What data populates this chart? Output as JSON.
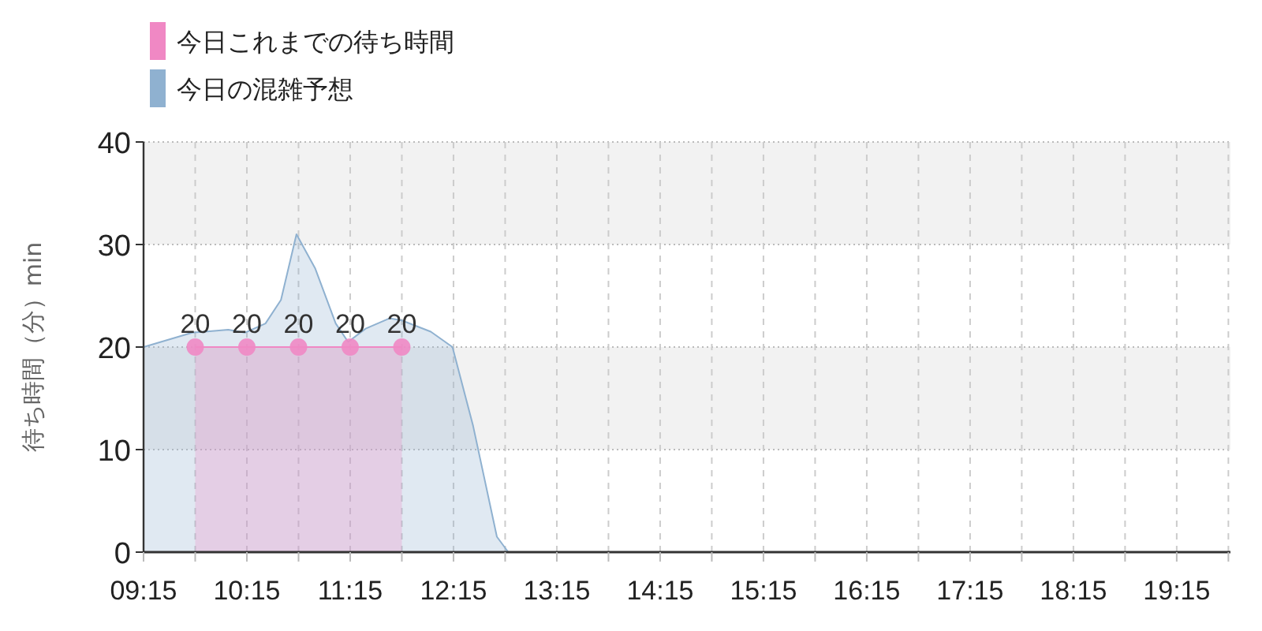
{
  "chart_data": {
    "type": "area",
    "ylabel": "待ち時間（分）min",
    "x": [
      9.75,
      10.25,
      10.75,
      11.25,
      11.75
    ],
    "xlim": [
      9.25,
      19.77
    ],
    "xticks": [
      {
        "value": 9.25,
        "label": "09:15"
      },
      {
        "value": 9.75,
        "label": null
      },
      {
        "value": 10.25,
        "label": "10:15"
      },
      {
        "value": 10.75,
        "label": null
      },
      {
        "value": 11.25,
        "label": "11:15"
      },
      {
        "value": 11.75,
        "label": null
      },
      {
        "value": 12.25,
        "label": "12:15"
      },
      {
        "value": 12.75,
        "label": null
      },
      {
        "value": 13.25,
        "label": "13:15"
      },
      {
        "value": 13.75,
        "label": null
      },
      {
        "value": 14.25,
        "label": "14:15"
      },
      {
        "value": 14.75,
        "label": null
      },
      {
        "value": 15.25,
        "label": "15:15"
      },
      {
        "value": 15.75,
        "label": null
      },
      {
        "value": 16.25,
        "label": "16:15"
      },
      {
        "value": 16.75,
        "label": null
      },
      {
        "value": 17.25,
        "label": "17:15"
      },
      {
        "value": 17.75,
        "label": null
      },
      {
        "value": 18.25,
        "label": "18:15"
      },
      {
        "value": 18.75,
        "label": null
      },
      {
        "value": 19.25,
        "label": "19:15"
      },
      {
        "value": 19.75,
        "label": null
      }
    ],
    "ylim": [
      0,
      40
    ],
    "yticks": [
      0,
      10,
      20,
      30,
      40
    ],
    "grid": true,
    "legend": "top left",
    "bands": [
      {
        "axis": "y",
        "from": 10,
        "to": 20,
        "color": "#f2f2f2"
      },
      {
        "axis": "y",
        "from": 30,
        "to": 40,
        "color": "#f2f2f2"
      }
    ],
    "series": [
      {
        "name": "今日これまでの待ち時間",
        "color": "#f088c4",
        "marker": "circle",
        "values": [
          20,
          20,
          20,
          20,
          20
        ],
        "value_labels": [
          "20",
          "20",
          "20",
          "20",
          "20"
        ]
      },
      {
        "name": "今日の混雑予想",
        "color": "#8fb1d0",
        "marker": "none",
        "x": [
          9.25,
          9.72,
          10.07,
          10.23,
          10.43,
          10.58,
          10.73,
          10.91,
          11.11,
          11.23,
          11.4,
          11.63,
          11.75,
          12.03,
          12.24,
          12.44,
          12.67,
          12.78,
          19.77
        ],
        "values": [
          20,
          21.4,
          21.7,
          21.4,
          22.3,
          24.6,
          31,
          27.7,
          22.3,
          20.5,
          21.8,
          22.8,
          22.6,
          21.5,
          20,
          12.3,
          1.5,
          0,
          0
        ]
      }
    ]
  }
}
